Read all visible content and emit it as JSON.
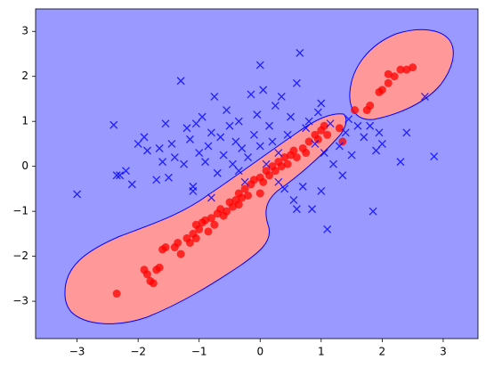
{
  "chart_data": {
    "type": "scatter",
    "xlim": [
      -3.68,
      3.57
    ],
    "ylim": [
      -3.83,
      3.5
    ],
    "xticks": [
      {
        "value": -3,
        "label": "−3"
      },
      {
        "value": -2,
        "label": "−2"
      },
      {
        "value": -1,
        "label": "−1"
      },
      0,
      1,
      2,
      3
    ],
    "yticks": [
      {
        "value": -3,
        "label": "−3"
      },
      {
        "value": -2,
        "label": "−2"
      },
      {
        "value": -1,
        "label": "−1"
      },
      0,
      1,
      2,
      3
    ],
    "series": [
      {
        "color": "#ff0000",
        "marker": "o",
        "x": [
          -2.35,
          -1.9,
          -1.85,
          -1.8,
          -1.75,
          -1.7,
          -1.65,
          -1.6,
          -1.55,
          -1.4,
          -1.35,
          -1.3,
          -1.2,
          -1.15,
          -1.1,
          -1.05,
          -1.0,
          -0.95,
          -0.9,
          -0.85,
          -0.8,
          -0.75,
          -0.7,
          -0.65,
          -0.6,
          -0.5,
          -0.45,
          -0.4,
          -0.35,
          -0.3,
          -0.25,
          -0.2,
          -0.15,
          -0.1,
          0,
          0.05,
          0.1,
          0.15,
          0.2,
          0.25,
          0.3,
          0.35,
          0.4,
          0.45,
          0.5,
          0.55,
          0.6,
          0.7,
          0.75,
          0.8,
          0.9,
          0.95,
          1.0,
          1.05,
          1.1,
          1.3,
          1.35,
          1.55,
          1.75,
          1.8,
          1.95,
          2.0,
          2.1,
          2.1,
          2.2,
          2.3,
          2.4,
          2.5,
          -0.35,
          0.0,
          -0.55,
          -1.05
        ],
        "y": [
          -2.83,
          -2.3,
          -2.4,
          -2.55,
          -2.6,
          -2.3,
          -2.25,
          -1.85,
          -1.8,
          -1.8,
          -1.7,
          -1.95,
          -1.6,
          -1.7,
          -1.5,
          -1.3,
          -1.4,
          -1.25,
          -1.2,
          -1.45,
          -1.15,
          -1.3,
          -1.05,
          -0.95,
          -1.1,
          -0.8,
          -0.9,
          -0.75,
          -0.6,
          -0.7,
          -0.5,
          -0.65,
          -0.4,
          -0.3,
          -0.25,
          -0.35,
          -0.1,
          -0.2,
          0.0,
          -0.1,
          0.1,
          0.0,
          0.2,
          0.05,
          0.25,
          0.35,
          0.2,
          0.4,
          0.3,
          0.55,
          0.7,
          0.6,
          0.8,
          0.9,
          0.7,
          0.85,
          0.55,
          1.25,
          1.25,
          1.35,
          1.65,
          1.7,
          1.85,
          2.05,
          2.0,
          2.15,
          2.15,
          2.2,
          -0.85,
          -0.6,
          -1.0,
          -1.6
        ]
      },
      {
        "color": "#0000ff",
        "marker": "x",
        "x": [
          -3.0,
          -2.4,
          -2.35,
          -2.3,
          -2.2,
          -2.1,
          -2.0,
          -1.9,
          -1.85,
          -1.7,
          -1.65,
          -1.6,
          -1.55,
          -1.5,
          -1.45,
          -1.4,
          -1.3,
          -1.25,
          -1.2,
          -1.15,
          -1.1,
          -1.1,
          -1.05,
          -1.0,
          -0.95,
          -0.9,
          -0.85,
          -0.8,
          -0.75,
          -0.7,
          -0.65,
          -0.6,
          -0.55,
          -0.5,
          -0.45,
          -0.4,
          -0.35,
          -0.3,
          -0.25,
          -0.2,
          -0.15,
          -0.1,
          -0.05,
          0.0,
          0.05,
          0.1,
          0.15,
          0.2,
          0.25,
          0.3,
          0.35,
          0.4,
          0.45,
          0.5,
          0.55,
          0.6,
          0.65,
          0.7,
          0.75,
          0.8,
          0.85,
          0.9,
          0.95,
          1.0,
          1.05,
          1.1,
          1.15,
          1.2,
          1.3,
          1.35,
          1.4,
          1.45,
          1.5,
          1.6,
          1.7,
          1.8,
          1.9,
          1.95,
          2.0,
          2.3,
          2.4,
          2.7,
          2.85,
          1.85,
          0.6,
          0.3,
          -0.35,
          -0.8,
          1.0,
          0.0
        ],
        "y": [
          -0.62,
          0.92,
          -0.2,
          -0.2,
          -0.1,
          -0.4,
          0.5,
          0.65,
          0.35,
          -0.3,
          0.4,
          0.1,
          0.95,
          -0.25,
          0.5,
          0.2,
          1.9,
          0.05,
          0.85,
          0.6,
          -0.55,
          -0.45,
          0.95,
          0.3,
          1.1,
          0.1,
          0.45,
          0.75,
          1.55,
          -0.15,
          0.65,
          0.25,
          1.25,
          0.9,
          0.05,
          0.55,
          1.0,
          0.4,
          -0.35,
          0.2,
          1.6,
          0.7,
          1.15,
          0.45,
          1.7,
          0.05,
          0.9,
          0.55,
          1.35,
          0.3,
          1.55,
          -0.5,
          0.7,
          1.1,
          -0.75,
          1.85,
          2.52,
          -0.45,
          0.85,
          1.0,
          -0.95,
          0.5,
          1.2,
          -0.55,
          0.3,
          -1.4,
          0.95,
          0.05,
          0.45,
          -0.2,
          0.75,
          1.05,
          0.25,
          0.9,
          0.65,
          0.9,
          0.35,
          0.75,
          0.5,
          0.1,
          0.75,
          1.55,
          0.22,
          -1.0,
          -0.95,
          -0.35,
          -0.1,
          -0.7,
          1.4,
          2.25
        ]
      }
    ]
  }
}
